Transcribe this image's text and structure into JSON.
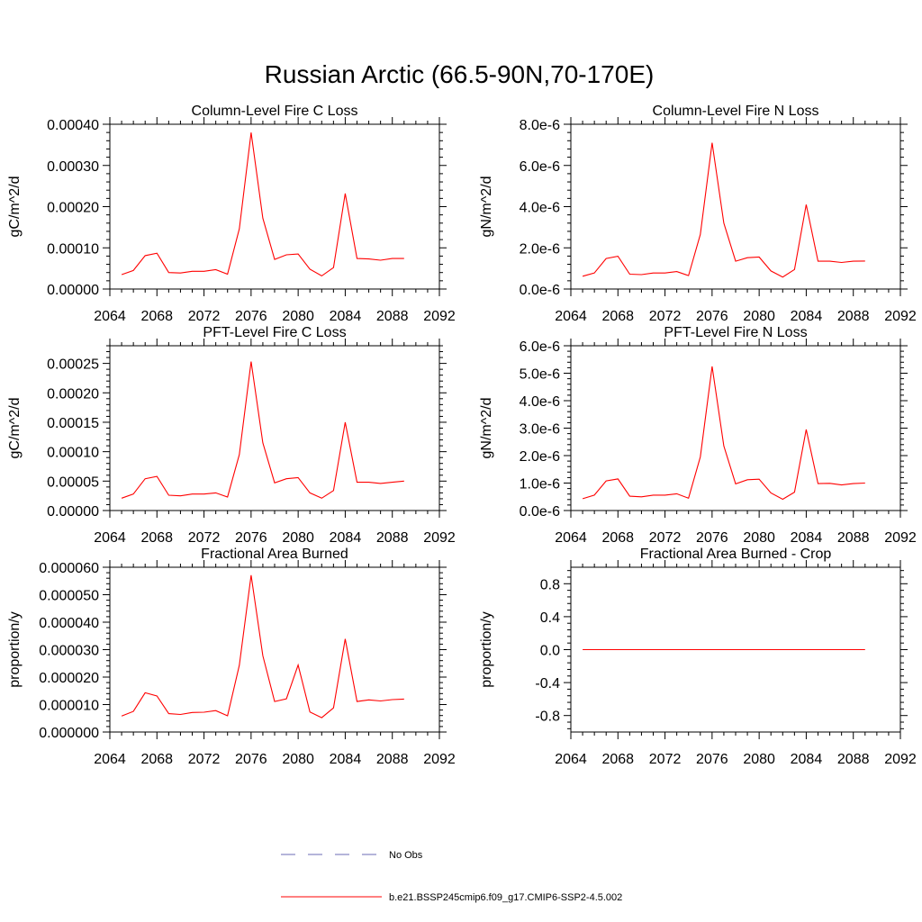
{
  "title": "Russian Arctic (66.5-90N,70-170E)",
  "colors": {
    "model": "#ff0000",
    "obs": "#6b6bb5",
    "axis": "#000000"
  },
  "legend": {
    "obs_label": "No Obs",
    "model_label": "b.e21.BSSP245cmip6.f09_g17.CMIP6-SSP2-4.5.002"
  },
  "chart_data": [
    {
      "type": "line",
      "title": "Column-Level Fire C Loss",
      "ylabel": "gC/m^2/d",
      "xlim": [
        2064,
        2092
      ],
      "ylim": [
        0,
        0.0004
      ],
      "x_ticks": [
        "2064",
        "2068",
        "2072",
        "2076",
        "2080",
        "2084",
        "2088",
        "2092"
      ],
      "y_ticks": [
        {
          "value": 0,
          "label": "0.00000"
        },
        {
          "value": 0.0001,
          "label": "0.00010"
        },
        {
          "value": 0.0002,
          "label": "0.00020"
        },
        {
          "value": 0.0003,
          "label": "0.00030"
        },
        {
          "value": 0.0004,
          "label": "0.00040"
        }
      ],
      "x": [
        2065,
        2066,
        2067,
        2068,
        2069,
        2070,
        2071,
        2072,
        2073,
        2074,
        2075,
        2076,
        2077,
        2078,
        2079,
        2080,
        2081,
        2082,
        2083,
        2084,
        2085,
        2086,
        2087,
        2088,
        2089
      ],
      "series": [
        {
          "values": [
            3.5e-05,
            4.5e-05,
            8.1e-05,
            8.7e-05,
            4e-05,
            3.9e-05,
            4.3e-05,
            4.3e-05,
            4.7e-05,
            3.6e-05,
            0.000146,
            0.00038,
            0.000172,
            7.2e-05,
            8.3e-05,
            8.5e-05,
            4.8e-05,
            3.2e-05,
            5.2e-05,
            0.000232,
            7.4e-05,
            7.3e-05,
            7e-05,
            7.4e-05,
            7.4e-05
          ]
        }
      ]
    },
    {
      "type": "line",
      "title": "Column-Level Fire N Loss",
      "ylabel": "gN/m^2/d",
      "xlim": [
        2064,
        2092
      ],
      "ylim": [
        0,
        8e-06
      ],
      "x_ticks": [
        "2064",
        "2068",
        "2072",
        "2076",
        "2080",
        "2084",
        "2088",
        "2092"
      ],
      "y_ticks": [
        {
          "value": 0,
          "label": "0.0e-6"
        },
        {
          "value": 2e-06,
          "label": "2.0e-6"
        },
        {
          "value": 4e-06,
          "label": "4.0e-6"
        },
        {
          "value": 6e-06,
          "label": "6.0e-6"
        },
        {
          "value": 8e-06,
          "label": "8.0e-6"
        }
      ],
      "x": [
        2065,
        2066,
        2067,
        2068,
        2069,
        2070,
        2071,
        2072,
        2073,
        2074,
        2075,
        2076,
        2077,
        2078,
        2079,
        2080,
        2081,
        2082,
        2083,
        2084,
        2085,
        2086,
        2087,
        2088,
        2089
      ],
      "series": [
        {
          "values": [
            6.2e-07,
            7.8e-07,
            1.48e-06,
            1.59e-06,
            7.2e-07,
            7e-07,
            7.8e-07,
            7.8e-07,
            8.5e-07,
            6.5e-07,
            2.65e-06,
            7.1e-06,
            3.2e-06,
            1.35e-06,
            1.52e-06,
            1.55e-06,
            8.8e-07,
            5.8e-07,
            9.5e-07,
            4.1e-06,
            1.35e-06,
            1.35e-06,
            1.29e-06,
            1.35e-06,
            1.36e-06
          ]
        }
      ]
    },
    {
      "type": "line",
      "title": "PFT-Level Fire C Loss",
      "ylabel": "gC/m^2/d",
      "xlim": [
        2064,
        2092
      ],
      "ylim": [
        0,
        0.00028
      ],
      "x_ticks": [
        "2064",
        "2068",
        "2072",
        "2076",
        "2080",
        "2084",
        "2088",
        "2092"
      ],
      "y_ticks": [
        {
          "value": 0,
          "label": "0.00000"
        },
        {
          "value": 5e-05,
          "label": "0.00005"
        },
        {
          "value": 0.0001,
          "label": "0.00010"
        },
        {
          "value": 0.00015,
          "label": "0.00015"
        },
        {
          "value": 0.0002,
          "label": "0.00020"
        },
        {
          "value": 0.00025,
          "label": "0.00025"
        }
      ],
      "x": [
        2065,
        2066,
        2067,
        2068,
        2069,
        2070,
        2071,
        2072,
        2073,
        2074,
        2075,
        2076,
        2077,
        2078,
        2079,
        2080,
        2081,
        2082,
        2083,
        2084,
        2085,
        2086,
        2087,
        2088,
        2089
      ],
      "series": [
        {
          "values": [
            2.1e-05,
            2.8e-05,
            5.4e-05,
            5.8e-05,
            2.6e-05,
            2.5e-05,
            2.8e-05,
            2.8e-05,
            3e-05,
            2.3e-05,
            9.5e-05,
            0.000253,
            0.000115,
            4.7e-05,
            5.4e-05,
            5.6e-05,
            3e-05,
            2.1e-05,
            3.4e-05,
            0.00015,
            4.8e-05,
            4.8e-05,
            4.6e-05,
            4.8e-05,
            5e-05
          ]
        }
      ]
    },
    {
      "type": "line",
      "title": "PFT-Level Fire N Loss",
      "ylabel": "gN/m^2/d",
      "xlim": [
        2064,
        2092
      ],
      "ylim": [
        0,
        6e-06
      ],
      "x_ticks": [
        "2064",
        "2068",
        "2072",
        "2076",
        "2080",
        "2084",
        "2088",
        "2092"
      ],
      "y_ticks": [
        {
          "value": 0,
          "label": "0.0e-6"
        },
        {
          "value": 1e-06,
          "label": "1.0e-6"
        },
        {
          "value": 2e-06,
          "label": "2.0e-6"
        },
        {
          "value": 3e-06,
          "label": "3.0e-6"
        },
        {
          "value": 4e-06,
          "label": "4.0e-6"
        },
        {
          "value": 5e-06,
          "label": "5.0e-6"
        },
        {
          "value": 6e-06,
          "label": "6.0e-6"
        }
      ],
      "x": [
        2065,
        2066,
        2067,
        2068,
        2069,
        2070,
        2071,
        2072,
        2073,
        2074,
        2075,
        2076,
        2077,
        2078,
        2079,
        2080,
        2081,
        2082,
        2083,
        2084,
        2085,
        2086,
        2087,
        2088,
        2089
      ],
      "series": [
        {
          "values": [
            4.3e-07,
            5.6e-07,
            1.08e-06,
            1.15e-06,
            5.2e-07,
            5e-07,
            5.6e-07,
            5.6e-07,
            6.1e-07,
            4.5e-07,
            1.95e-06,
            5.25e-06,
            2.35e-06,
            9.7e-07,
            1.12e-06,
            1.14e-06,
            6.4e-07,
            4.1e-07,
            6.7e-07,
            2.95e-06,
            9.8e-07,
            9.9e-07,
            9.3e-07,
            9.8e-07,
            1e-06
          ]
        }
      ]
    },
    {
      "type": "line",
      "title": "Fractional Area Burned",
      "ylabel": "proportion/y",
      "xlim": [
        2064,
        2092
      ],
      "ylim": [
        0,
        6e-05
      ],
      "x_ticks": [
        "2064",
        "2068",
        "2072",
        "2076",
        "2080",
        "2084",
        "2088",
        "2092"
      ],
      "y_ticks": [
        {
          "value": 0,
          "label": "0.000000"
        },
        {
          "value": 1e-05,
          "label": "0.000010"
        },
        {
          "value": 2e-05,
          "label": "0.000020"
        },
        {
          "value": 3e-05,
          "label": "0.000030"
        },
        {
          "value": 4e-05,
          "label": "0.000040"
        },
        {
          "value": 5e-05,
          "label": "0.000050"
        },
        {
          "value": 6e-05,
          "label": "0.000060"
        }
      ],
      "x": [
        2065,
        2066,
        2067,
        2068,
        2069,
        2070,
        2071,
        2072,
        2073,
        2074,
        2075,
        2076,
        2077,
        2078,
        2079,
        2080,
        2081,
        2082,
        2083,
        2084,
        2085,
        2086,
        2087,
        2088,
        2089
      ],
      "series": [
        {
          "values": [
            5.8e-06,
            7.5e-06,
            1.43e-05,
            1.31e-05,
            6.7e-06,
            6.4e-06,
            7.1e-06,
            7.2e-06,
            7.8e-06,
            5.9e-06,
            2.43e-05,
            5.71e-05,
            2.78e-05,
            1.11e-05,
            1.21e-05,
            2.44e-05,
            7.3e-06,
            5.2e-06,
            8.8e-06,
            3.39e-05,
            1.11e-05,
            1.17e-05,
            1.13e-05,
            1.18e-05,
            1.2e-05
          ]
        }
      ]
    },
    {
      "type": "line",
      "title": "Fractional Area Burned - Crop",
      "ylabel": "proportion/y",
      "xlim": [
        2064,
        2092
      ],
      "ylim": [
        -1,
        1
      ],
      "x_ticks": [
        "2064",
        "2068",
        "2072",
        "2076",
        "2080",
        "2084",
        "2088",
        "2092"
      ],
      "y_ticks": [
        {
          "value": -0.8,
          "label": "-0.8"
        },
        {
          "value": -0.4,
          "label": "-0.4"
        },
        {
          "value": 0,
          "label": "0.0"
        },
        {
          "value": 0.4,
          "label": "0.4"
        },
        {
          "value": 0.8,
          "label": "0.8"
        }
      ],
      "x": [
        2065,
        2066,
        2067,
        2068,
        2069,
        2070,
        2071,
        2072,
        2073,
        2074,
        2075,
        2076,
        2077,
        2078,
        2079,
        2080,
        2081,
        2082,
        2083,
        2084,
        2085,
        2086,
        2087,
        2088,
        2089
      ],
      "series": [
        {
          "values": [
            0,
            0,
            0,
            0,
            0,
            0,
            0,
            0,
            0,
            0,
            0,
            0,
            0,
            0,
            0,
            0,
            0,
            0,
            0,
            0,
            0,
            0,
            0,
            0,
            0
          ]
        }
      ]
    }
  ]
}
